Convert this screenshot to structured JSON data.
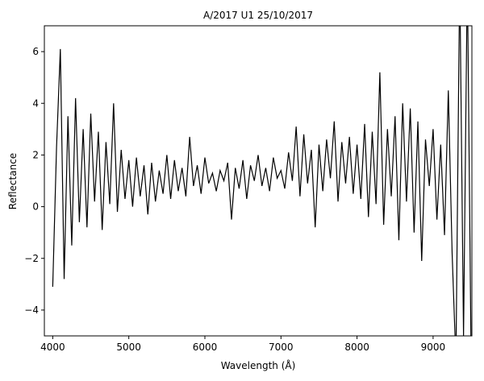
{
  "chart_data": {
    "type": "line",
    "title": "A/2017 U1  25/10/2017",
    "x_label": "Wavelength (Å)",
    "y_label": "Reflectance",
    "x": [
      4000,
      4050,
      4100,
      4150,
      4200,
      4250,
      4300,
      4350,
      4400,
      4450,
      4500,
      4550,
      4600,
      4650,
      4700,
      4750,
      4800,
      4850,
      4900,
      4950,
      5000,
      5050,
      5100,
      5150,
      5200,
      5250,
      5300,
      5350,
      5400,
      5450,
      5500,
      5550,
      5600,
      5650,
      5700,
      5750,
      5800,
      5850,
      5900,
      5950,
      6000,
      6050,
      6100,
      6150,
      6200,
      6250,
      6300,
      6350,
      6400,
      6450,
      6500,
      6550,
      6600,
      6650,
      6700,
      6750,
      6800,
      6850,
      6900,
      6950,
      7000,
      7050,
      7100,
      7150,
      7200,
      7250,
      7300,
      7350,
      7400,
      7450,
      7500,
      7550,
      7600,
      7650,
      7700,
      7750,
      7800,
      7850,
      7900,
      7950,
      8000,
      8050,
      8100,
      8150,
      8200,
      8250,
      8300,
      8350,
      8400,
      8450,
      8500,
      8550,
      8600,
      8650,
      8700,
      8750,
      8800,
      8850,
      8900,
      8950,
      9000,
      9050,
      9100,
      9150,
      9200,
      9250,
      9300,
      9350,
      9400,
      9450,
      9500
    ],
    "series": [
      {
        "name": "Reflectance",
        "color": "#000000",
        "values": [
          -3.1,
          2.3,
          6.1,
          -2.8,
          3.5,
          -1.5,
          4.2,
          -0.6,
          3.0,
          -0.8,
          3.6,
          0.2,
          2.9,
          -0.9,
          2.5,
          0.1,
          4.0,
          -0.2,
          2.2,
          0.3,
          1.8,
          0.0,
          1.9,
          0.4,
          1.6,
          -0.3,
          1.7,
          0.2,
          1.4,
          0.5,
          2.0,
          0.3,
          1.8,
          0.6,
          1.5,
          0.4,
          2.7,
          0.8,
          1.6,
          0.5,
          1.9,
          0.9,
          1.3,
          0.6,
          1.4,
          1.0,
          1.7,
          -0.5,
          1.5,
          0.7,
          1.8,
          0.3,
          1.6,
          1.0,
          2.0,
          0.8,
          1.5,
          0.6,
          1.9,
          1.1,
          1.4,
          0.7,
          2.1,
          1.0,
          3.1,
          0.4,
          2.8,
          0.9,
          2.2,
          -0.8,
          2.4,
          0.6,
          2.6,
          1.1,
          3.3,
          0.2,
          2.5,
          0.9,
          2.7,
          0.5,
          2.4,
          0.3,
          3.2,
          -0.4,
          2.9,
          0.1,
          5.2,
          -0.7,
          3.0,
          0.4,
          3.5,
          -1.3,
          4.0,
          0.2,
          3.8,
          -1.0,
          3.3,
          -2.1,
          2.6,
          0.8,
          3.0,
          -0.5,
          2.4,
          -1.1,
          4.5,
          -1.8,
          -6,
          9,
          -5,
          9,
          -6
        ]
      }
    ],
    "xlim": [
      3890,
      9510
    ],
    "ylim": [
      -5,
      7
    ],
    "xticks": [
      4000,
      5000,
      6000,
      7000,
      8000,
      9000
    ],
    "yticks": [
      {
        "value": -4,
        "label": "−4"
      },
      {
        "value": -2,
        "label": "−2"
      },
      0,
      2,
      4,
      6
    ]
  }
}
